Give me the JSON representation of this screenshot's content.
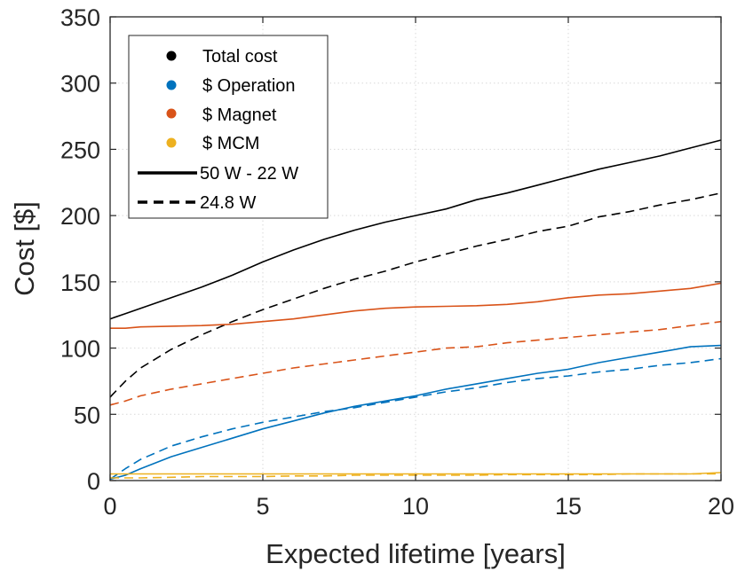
{
  "chart_data": {
    "type": "line",
    "xlabel": "Expected lifetime [years]",
    "ylabel": "Cost [$]",
    "xlim": [
      0,
      20
    ],
    "ylim": [
      0,
      350
    ],
    "xticks": [
      0,
      5,
      10,
      15,
      20
    ],
    "yticks": [
      0,
      50,
      100,
      150,
      200,
      250,
      300,
      350
    ],
    "grid": true,
    "legend_position": "top-left",
    "legend": {
      "colors": [
        {
          "label": "Total cost",
          "color": "#000000"
        },
        {
          "label": "$ Operation",
          "color": "#0072BD"
        },
        {
          "label": "$ Magnet",
          "color": "#D95319"
        },
        {
          "label": "$ MCM",
          "color": "#EDB120"
        }
      ],
      "styles": [
        {
          "label": "50 W - 22 W",
          "dash": "solid"
        },
        {
          "label": "24.8 W",
          "dash": "dashed"
        }
      ]
    },
    "x": [
      0,
      0.5,
      1,
      2,
      3,
      4,
      5,
      6,
      7,
      8,
      9,
      10,
      11,
      12,
      13,
      14,
      15,
      16,
      17,
      18,
      19,
      20
    ],
    "series": [
      {
        "name": "Total cost",
        "scenario": "50 W - 22 W",
        "color": "#000000",
        "dash": "solid",
        "values": [
          122,
          126,
          130,
          138,
          146,
          155,
          165,
          174,
          182,
          189,
          195,
          200,
          205,
          212,
          217,
          223,
          229,
          235,
          240,
          245,
          251,
          257
        ]
      },
      {
        "name": "Total cost",
        "scenario": "24.8 W",
        "color": "#000000",
        "dash": "dashed",
        "values": [
          63,
          75,
          85,
          99,
          110,
          120,
          129,
          137,
          145,
          152,
          158,
          165,
          171,
          177,
          182,
          188,
          192,
          199,
          203,
          208,
          212,
          217
        ]
      },
      {
        "name": "$ Operation",
        "scenario": "50 W - 22 W",
        "color": "#0072BD",
        "dash": "solid",
        "values": [
          1,
          4,
          9,
          18,
          25,
          32,
          39,
          45,
          51,
          56,
          60,
          64,
          69,
          73,
          77,
          81,
          84,
          89,
          93,
          97,
          101,
          102
        ]
      },
      {
        "name": "$ Operation",
        "scenario": "24.8 W",
        "color": "#0072BD",
        "dash": "dashed",
        "values": [
          1,
          9,
          16,
          26,
          33,
          39,
          44,
          48,
          52,
          55,
          59,
          63,
          67,
          70,
          74,
          77,
          79,
          82,
          84,
          87,
          89,
          92
        ]
      },
      {
        "name": "$ Magnet",
        "scenario": "50 W - 22 W",
        "color": "#D95319",
        "dash": "solid",
        "values": [
          115,
          115,
          116,
          116.5,
          117,
          118,
          120,
          122,
          125,
          128,
          130,
          131,
          131.5,
          132,
          133,
          135,
          138,
          140,
          141,
          143,
          145,
          149
        ]
      },
      {
        "name": "$ Magnet",
        "scenario": "24.8 W",
        "color": "#D95319",
        "dash": "dashed",
        "values": [
          57,
          60,
          64,
          69,
          73,
          77,
          81,
          85,
          88,
          91,
          94,
          97,
          100,
          101,
          104,
          106,
          108,
          110,
          112,
          114,
          117,
          120
        ]
      },
      {
        "name": "$ MCM",
        "scenario": "50 W - 22 W",
        "color": "#EDB120",
        "dash": "solid",
        "values": [
          5,
          5,
          5,
          5,
          5,
          5,
          5,
          5,
          5,
          5,
          5,
          5,
          5,
          5,
          5,
          5,
          5,
          5,
          5,
          5,
          5,
          6
        ]
      },
      {
        "name": "$ MCM",
        "scenario": "24.8 W",
        "color": "#EDB120",
        "dash": "dashed",
        "values": [
          2,
          2,
          2,
          2.5,
          3,
          3,
          3,
          3.5,
          3.5,
          4,
          4,
          4,
          4,
          4,
          4.5,
          4.5,
          4.5,
          4.5,
          5,
          5,
          5,
          5
        ]
      }
    ]
  }
}
